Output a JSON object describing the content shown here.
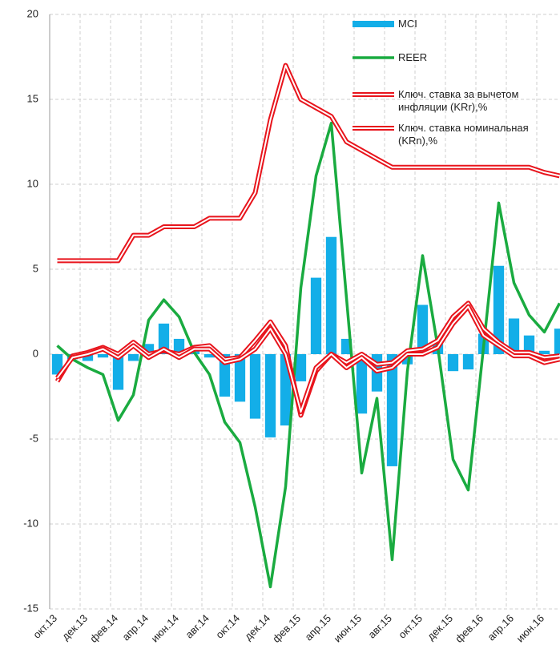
{
  "chart_data": {
    "type": "bar",
    "categories": [
      "окт.13",
      null,
      "дек.13",
      null,
      "фев.14",
      null,
      "апр.14",
      null,
      "июн.14",
      null,
      "авг.14",
      null,
      "окт.14",
      null,
      "дек.14",
      null,
      "фев.15",
      null,
      "апр.15",
      null,
      "июн.15",
      null,
      "авг.15",
      null,
      "окт.15",
      null,
      "дек.15",
      null,
      "фев.16",
      null,
      "апр.16",
      null,
      "июн.16",
      null
    ],
    "series": [
      {
        "name": "MCI",
        "type": "bar",
        "color": "#13aee8",
        "values": [
          -1.2,
          -0.3,
          -0.4,
          -0.2,
          -2.1,
          -0.4,
          0.6,
          1.8,
          0.9,
          0.3,
          -0.2,
          -2.5,
          -2.8,
          -3.8,
          -4.9,
          -4.2,
          -1.6,
          4.5,
          6.9,
          0.9,
          -3.5,
          -2.2,
          -6.6,
          -0.6,
          2.9,
          0.6,
          -1.0,
          -0.9,
          1.2,
          5.2,
          2.1,
          1.1,
          0.2,
          1.5
        ]
      },
      {
        "name": "REER",
        "type": "line",
        "color": "#1aab40",
        "values": [
          0.5,
          -0.3,
          -0.8,
          -1.2,
          -3.9,
          -2.4,
          2.0,
          3.2,
          2.2,
          0.1,
          -1.2,
          -4.0,
          -5.2,
          -9.0,
          -13.7,
          -7.8,
          3.9,
          10.5,
          13.6,
          3.3,
          -7.0,
          -2.6,
          -12.1,
          -1.0,
          5.8,
          0.4,
          -6.2,
          -8.0,
          0.4,
          8.9,
          4.2,
          2.3,
          1.3,
          3.0
        ]
      },
      {
        "name": "Ключ. ставка за вычетом инфляции (KRr),%",
        "type": "line",
        "line_style": "double",
        "color": "#e8141c",
        "values": [
          -1.6,
          -0.1,
          0.1,
          0.4,
          0.0,
          0.7,
          0.0,
          0.2,
          0.0,
          0.4,
          0.5,
          -0.3,
          -0.2,
          0.8,
          1.9,
          0.5,
          -3.6,
          -1.0,
          0.0,
          -0.5,
          0.0,
          -0.6,
          -0.5,
          0.2,
          0.3,
          0.8,
          2.2,
          3.0,
          1.5,
          0.7,
          0.1,
          0.1,
          -0.2,
          -0.1
        ]
      },
      {
        "name": "Ключ. ставка номинальная (KRn),%",
        "type": "line",
        "line_style": "double",
        "color": "#e8141c",
        "values": [
          5.5,
          5.5,
          5.5,
          5.5,
          5.5,
          7.0,
          7.0,
          7.5,
          7.5,
          7.5,
          8.0,
          8.0,
          8.0,
          9.5,
          13.8,
          17.0,
          15.0,
          14.5,
          14.0,
          12.5,
          12.0,
          11.5,
          11.0,
          11.0,
          11.0,
          11.0,
          11.0,
          11.0,
          11.0,
          11.0,
          11.0,
          11.0,
          10.7,
          10.5
        ]
      },
      {
        "type": "line",
        "line_style": "double",
        "color": "#e8141c",
        "values": [
          -1.4,
          -0.2,
          0.0,
          0.3,
          -0.2,
          0.5,
          -0.2,
          0.3,
          -0.2,
          0.3,
          0.3,
          -0.5,
          -0.3,
          0.3,
          1.5,
          0.0,
          -3.4,
          -0.8,
          0.0,
          -0.8,
          -0.2,
          -1.0,
          -0.8,
          0.0,
          0.0,
          0.4,
          1.8,
          2.8,
          1.1,
          0.5,
          -0.1,
          -0.1,
          -0.5,
          -0.3
        ]
      }
    ],
    "ylim": [
      -15,
      20
    ],
    "yticks": [
      -15,
      -10,
      -5,
      0,
      5,
      10,
      15,
      20
    ],
    "grid": true,
    "legend": "upper right"
  }
}
